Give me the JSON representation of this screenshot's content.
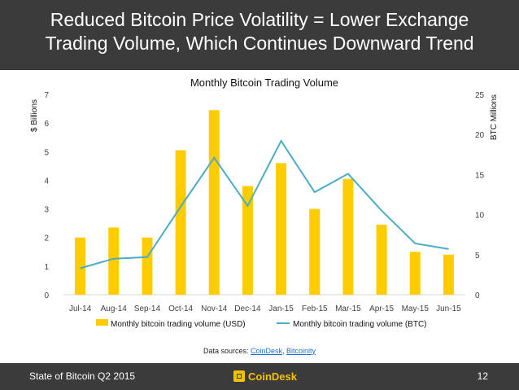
{
  "slide": {
    "title_line1": "Reduced Bitcoin Price Volatility = Lower Exchange",
    "title_line2": "Trading Volume, Which Continues Downward Trend",
    "sources_prefix": "Data sources: ",
    "source1": "CoinDesk",
    "source_sep": ", ",
    "source2": "Bitcoinity",
    "footer_left": "State of Bitcoin Q2 2015",
    "footer_logo": "CoinDesk",
    "page_number": "12"
  },
  "colors": {
    "bar": "#ffcc00",
    "line": "#4bacc6",
    "grid": "#d9d9d9",
    "text": "#404040",
    "header_bg": "#3b3b3b"
  },
  "chart_data": {
    "type": "bar",
    "title": "Monthly Bitcoin Trading Volume",
    "categories": [
      "Jul-14",
      "Aug-14",
      "Sep-14",
      "Oct-14",
      "Nov-14",
      "Dec-14",
      "Jan-15",
      "Feb-15",
      "Mar-15",
      "Apr-15",
      "May-15",
      "Jun-15"
    ],
    "ylabel": "$ Billions",
    "ylabel_right": "BTC Millions",
    "ylim": [
      0,
      7
    ],
    "ylim_right": [
      0,
      25
    ],
    "yticks": [
      "0",
      "1",
      "2",
      "3",
      "4",
      "5",
      "6",
      "7"
    ],
    "yticks_right": [
      "0",
      "5",
      "10",
      "15",
      "20",
      "25"
    ],
    "grid": false,
    "legend_position": "bottom",
    "series": [
      {
        "name": "Monthly bitcoin trading volume (USD)",
        "type": "bar",
        "axis": "left",
        "values": [
          2.0,
          2.35,
          2.0,
          5.05,
          6.45,
          3.8,
          4.6,
          3.0,
          4.05,
          2.45,
          1.5,
          1.4
        ]
      },
      {
        "name": "Monthly bitcoin trading volume (BTC)",
        "type": "line",
        "axis": "right",
        "values": [
          3.3,
          4.5,
          4.7,
          11.0,
          17.1,
          11.1,
          19.2,
          12.8,
          15.1,
          10.5,
          6.4,
          5.7
        ]
      }
    ]
  }
}
